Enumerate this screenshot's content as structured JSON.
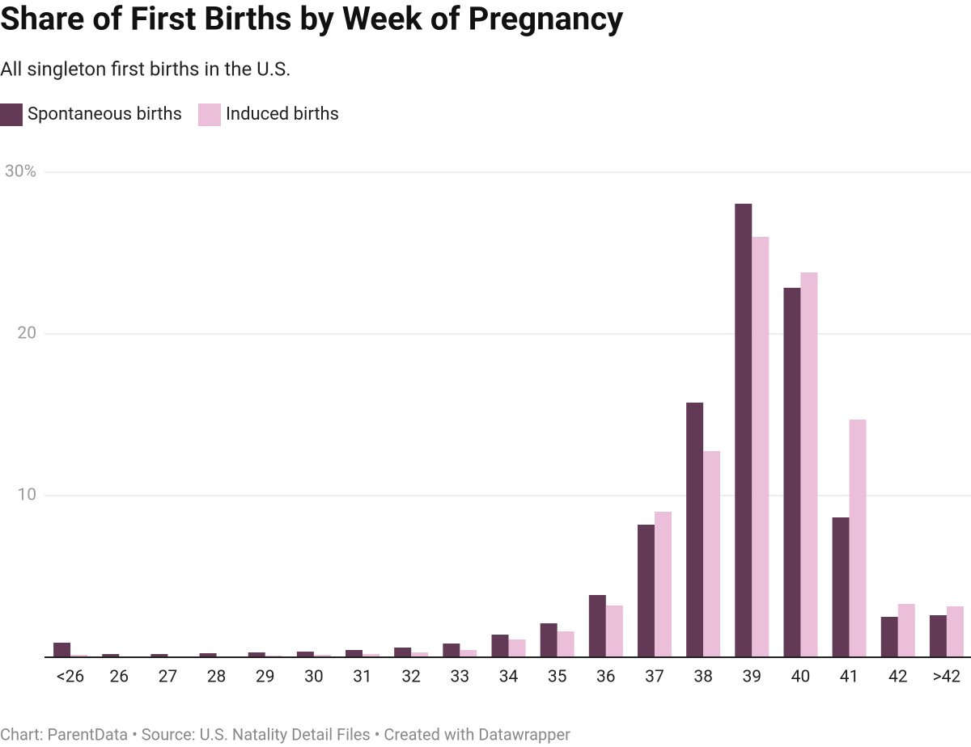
{
  "chart_data": {
    "type": "grouped_bar",
    "title": "Share of First Births by Week of Pregnancy",
    "subtitle": "All singleton first births in the U.S.",
    "source": "Chart: ParentData • Source: U.S. Natality Detail Files • Created with Datawrapper",
    "categories": [
      "<26",
      "26",
      "27",
      "28",
      "29",
      "30",
      "31",
      "32",
      "33",
      "34",
      "35",
      "36",
      "37",
      "38",
      "39",
      "40",
      "41",
      "42",
      ">42"
    ],
    "series": [
      {
        "name": "Spontaneous births",
        "color": "#633a55",
        "values": [
          0.9,
          0.2,
          0.2,
          0.25,
          0.3,
          0.35,
          0.45,
          0.6,
          0.85,
          1.4,
          2.1,
          3.85,
          8.2,
          15.75,
          28.05,
          22.85,
          8.65,
          2.5,
          2.6
        ]
      },
      {
        "name": "Induced births",
        "color": "#ebbfd9",
        "values": [
          0.15,
          0.05,
          0.05,
          0.05,
          0.1,
          0.15,
          0.2,
          0.3,
          0.45,
          1.1,
          1.6,
          3.2,
          9.0,
          12.75,
          26.0,
          23.8,
          14.7,
          3.3,
          3.15
        ]
      }
    ],
    "ylim": [
      0,
      30
    ],
    "yticks": [
      {
        "value": 30,
        "label": "30%"
      },
      20,
      10
    ],
    "grid": true
  }
}
